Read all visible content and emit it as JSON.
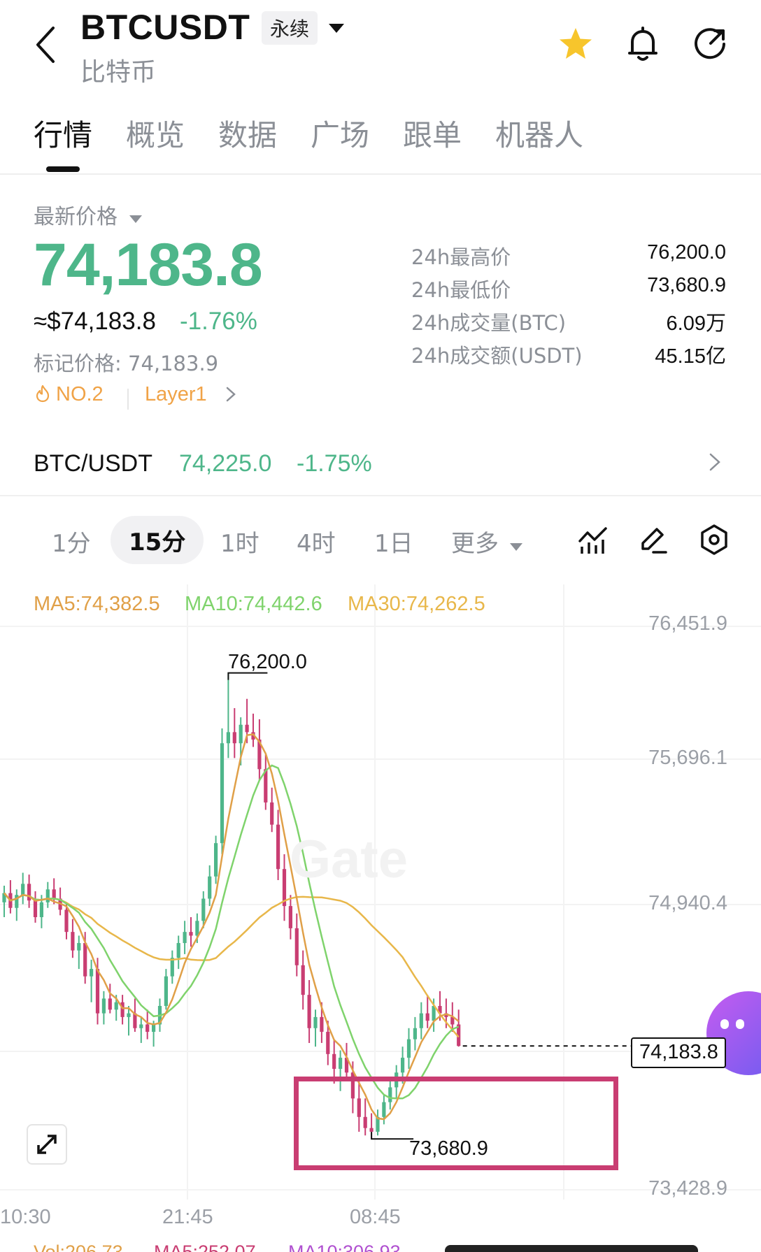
{
  "header": {
    "symbol": "BTCUSDT",
    "contract_type": "永续",
    "subtitle": "比特币",
    "icons": [
      "back-icon",
      "caret-down-icon",
      "star-icon",
      "bell-icon",
      "share-icon"
    ]
  },
  "tabs": [
    "行情",
    "概览",
    "数据",
    "广场",
    "跟单",
    "机器人"
  ],
  "price": {
    "label": "最新价格",
    "last": "74,183.8",
    "usd_approx": "≈$74,183.8",
    "change": "-1.76%",
    "mark_label": "标记价格: 74,183.9",
    "rank": "NO.2",
    "sector": "Layer1"
  },
  "stats": [
    {
      "label": "24h最高价",
      "value": "76,200.0"
    },
    {
      "label": "24h最低价",
      "value": "73,680.9"
    },
    {
      "label": "24h成交量(BTC)",
      "value": "6.09万"
    },
    {
      "label": "24h成交额(USDT)",
      "value": "45.15亿"
    }
  ],
  "spot": {
    "pair": "BTC/USDT",
    "price": "74,225.0",
    "change": "-1.75%"
  },
  "timeframes": [
    "1分",
    "15分",
    "1时",
    "4时",
    "1日"
  ],
  "timeframe_more": "更多",
  "timeframe_active": "15分",
  "ma": {
    "ma5": "MA5:74,382.5",
    "ma10": "MA10:74,442.6",
    "ma30": "MA30:74,262.5"
  },
  "y_axis": [
    "76,451.9",
    "75,696.1",
    "74,940.4",
    "73,428.9"
  ],
  "x_axis": [
    "10:30",
    "21:45",
    "08:45"
  ],
  "current_price_tag": "74,183.8",
  "high_marker": "76,200.0",
  "low_marker": "73,680.9",
  "watermark": "Gate",
  "volume": {
    "vol": "Vol:206.73",
    "ma5": "MA5:252.07",
    "ma10": "MA10:306.93"
  },
  "colors": {
    "up": "#4eb68a",
    "down": "#c93d72",
    "ma5": "#e0a048",
    "ma10": "#7fd36c",
    "ma30": "#e8b74a",
    "accent": "#f7c52c"
  },
  "chart_data": {
    "type": "candlestick",
    "interval": "15分",
    "ylim": [
      73428.9,
      76451.9
    ],
    "x_ticks": [
      "10:30",
      "21:45",
      "08:45"
    ],
    "candles": [
      [
        74960,
        75050,
        74880,
        75010
      ],
      [
        75010,
        75080,
        74900,
        74930
      ],
      [
        74930,
        75030,
        74860,
        75000
      ],
      [
        75000,
        75120,
        74950,
        75060
      ],
      [
        75060,
        75110,
        74930,
        74970
      ],
      [
        74970,
        75020,
        74850,
        74880
      ],
      [
        74880,
        75000,
        74820,
        74960
      ],
      [
        74960,
        75070,
        74930,
        75030
      ],
      [
        75030,
        75090,
        74950,
        74980
      ],
      [
        74980,
        75040,
        74890,
        74920
      ],
      [
        74920,
        74960,
        74760,
        74800
      ],
      [
        74800,
        74870,
        74660,
        74700
      ],
      [
        74700,
        74780,
        74600,
        74740
      ],
      [
        74740,
        74800,
        74520,
        74560
      ],
      [
        74560,
        74650,
        74420,
        74600
      ],
      [
        74600,
        74660,
        74300,
        74360
      ],
      [
        74360,
        74480,
        74300,
        74440
      ],
      [
        74440,
        74520,
        74360,
        74380
      ],
      [
        74380,
        74460,
        74320,
        74420
      ],
      [
        74420,
        74460,
        74300,
        74340
      ],
      [
        74340,
        74400,
        74240,
        74360
      ],
      [
        74360,
        74440,
        74260,
        74280
      ],
      [
        74280,
        74340,
        74200,
        74300
      ],
      [
        74300,
        74380,
        74220,
        74260
      ],
      [
        74260,
        74320,
        74180,
        74300
      ],
      [
        74300,
        74440,
        74260,
        74400
      ],
      [
        74400,
        74600,
        74380,
        74560
      ],
      [
        74560,
        74700,
        74520,
        74660
      ],
      [
        74660,
        74780,
        74600,
        74740
      ],
      [
        74740,
        74860,
        74680,
        74800
      ],
      [
        74800,
        74880,
        74720,
        74780
      ],
      [
        74780,
        74900,
        74740,
        74860
      ],
      [
        74860,
        75020,
        74820,
        74980
      ],
      [
        74980,
        75160,
        74940,
        75100
      ],
      [
        75100,
        75320,
        75060,
        75280
      ],
      [
        75280,
        75900,
        75220,
        75820
      ],
      [
        75820,
        76200,
        75740,
        75880
      ],
      [
        75880,
        76010,
        75740,
        75820
      ],
      [
        75820,
        75960,
        75700,
        75920
      ],
      [
        75920,
        76060,
        75820,
        75880
      ],
      [
        75880,
        75980,
        75800,
        75840
      ],
      [
        75840,
        75950,
        75620,
        75680
      ],
      [
        75680,
        75760,
        75460,
        75500
      ],
      [
        75500,
        75580,
        75340,
        75380
      ],
      [
        75380,
        75460,
        75080,
        75140
      ],
      [
        75140,
        75220,
        74860,
        74940
      ],
      [
        74940,
        75000,
        74760,
        74820
      ],
      [
        74820,
        74900,
        74560,
        74620
      ],
      [
        74620,
        74700,
        74380,
        74460
      ],
      [
        74460,
        74540,
        74200,
        74280
      ],
      [
        74280,
        74380,
        74180,
        74340
      ],
      [
        74340,
        74420,
        74200,
        74260
      ],
      [
        74260,
        74320,
        74080,
        74140
      ],
      [
        74140,
        74220,
        73980,
        74060
      ],
      [
        74060,
        74160,
        73940,
        74120
      ],
      [
        74120,
        74200,
        74000,
        74040
      ],
      [
        74040,
        74100,
        73820,
        73900
      ],
      [
        73900,
        74000,
        73720,
        73800
      ],
      [
        73800,
        73900,
        73700,
        73740
      ],
      [
        73740,
        73820,
        73681,
        73720
      ],
      [
        73720,
        73840,
        73700,
        73800
      ],
      [
        73800,
        73920,
        73760,
        73880
      ],
      [
        73880,
        74000,
        73840,
        73960
      ],
      [
        73960,
        74080,
        73900,
        74040
      ],
      [
        74040,
        74180,
        73980,
        74120
      ],
      [
        74120,
        74280,
        74060,
        74220
      ],
      [
        74220,
        74340,
        74160,
        74280
      ],
      [
        74280,
        74420,
        74220,
        74360
      ],
      [
        74360,
        74460,
        74280,
        74320
      ],
      [
        74320,
        74440,
        74260,
        74400
      ],
      [
        74400,
        74480,
        74320,
        74360
      ],
      [
        74360,
        74440,
        74280,
        74340
      ],
      [
        74340,
        74420,
        74260,
        74300
      ],
      [
        74300,
        74380,
        74180,
        74183.8
      ]
    ]
  }
}
